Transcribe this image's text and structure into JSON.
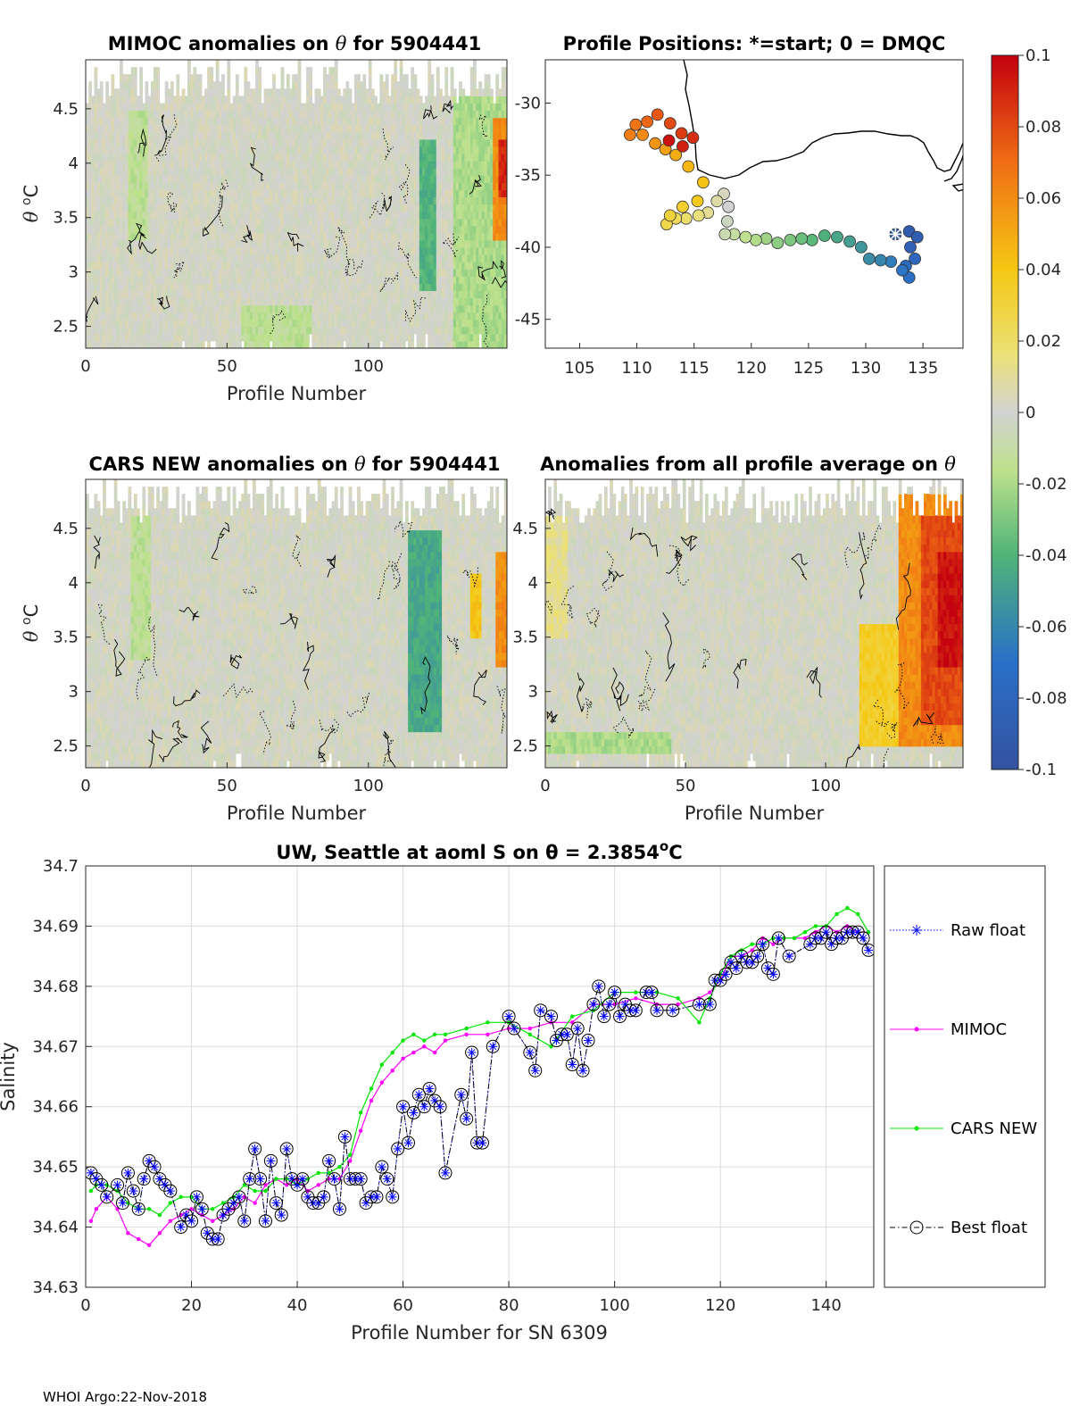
{
  "figure": {
    "footer": "WHOI Argo:22-Nov-2018",
    "colorbar_ticks": [
      "0.1",
      "0.08",
      "0.06",
      "0.04",
      "0.02",
      "0",
      "-0.02",
      "-0.04",
      "-0.06",
      "-0.08",
      "-0.1"
    ],
    "colors": {
      "grid": "#dcdcdc",
      "land": "#000000",
      "mimoc": "#ff00ff",
      "cars": "#00e600",
      "raw": "#0000ff",
      "best": "#000000"
    }
  },
  "panels": {
    "mimoc": {
      "title_a": "MIMOC anomalies on ",
      "theta": "θ",
      "title_b": "  for 5904441",
      "xlabel": "Profile Number",
      "ylabel_theta": "θ",
      "ylabel_unit": "C",
      "ylabel_deg": "o",
      "xticks": [
        "0",
        "50",
        "100"
      ],
      "yticks": [
        "4.5",
        "4",
        "3.5",
        "3",
        "2.5"
      ]
    },
    "positions": {
      "title": "Profile Positions: *=start; 0 = DMQC",
      "xticks": [
        "105",
        "110",
        "115",
        "120",
        "125",
        "130",
        "135"
      ],
      "yticks": [
        "-30",
        "-35",
        "-40",
        "-45"
      ]
    },
    "cars": {
      "title_a": "CARS NEW anomalies on ",
      "theta": "θ",
      "title_b": " for 5904441",
      "xlabel": "Profile Number",
      "ylabel_theta": "θ",
      "ylabel_unit": "C",
      "ylabel_deg": "o",
      "xticks": [
        "0",
        "50",
        "100"
      ],
      "yticks": [
        "4.5",
        "4",
        "3.5",
        "3",
        "2.5"
      ]
    },
    "average": {
      "title_a": "Anomalies from all profile average on ",
      "theta": "θ",
      "xlabel": "Profile Number",
      "xticks": [
        "0",
        "50",
        "100"
      ],
      "yticks": [
        "4.5",
        "4",
        "3.5",
        "3",
        "2.5"
      ]
    }
  },
  "chart_data": [
    {
      "type": "heatmap",
      "id": "mimoc",
      "title": "MIMOC anomalies on θ  for 5904441",
      "xlabel": "Profile Number",
      "ylabel": "θ °C",
      "xlim": [
        0,
        149
      ],
      "ylim": [
        2.3,
        4.95
      ],
      "clim": [
        -0.1,
        0.1
      ],
      "features": [
        {
          "x0": 130,
          "x1": 149,
          "y0": 2.3,
          "y1": 4.6,
          "v": -0.02
        },
        {
          "x0": 144,
          "x1": 149,
          "y0": 3.3,
          "y1": 4.4,
          "v": 0.06
        },
        {
          "x0": 146,
          "x1": 149,
          "y0": 3.7,
          "y1": 4.2,
          "v": 0.09
        },
        {
          "x0": 118,
          "x1": 124,
          "y0": 2.8,
          "y1": 4.2,
          "v": -0.04
        },
        {
          "x0": 15,
          "x1": 22,
          "y0": 3.3,
          "y1": 4.5,
          "v": -0.015
        },
        {
          "x0": 55,
          "x1": 80,
          "y0": 2.3,
          "y1": 2.7,
          "v": -0.015
        }
      ]
    },
    {
      "type": "scatter",
      "id": "positions",
      "title": "Profile Positions: *=start; 0 = DMQC",
      "xlim": [
        102,
        138.5
      ],
      "ylim": [
        -47,
        -27
      ],
      "start": {
        "lon": 132.6,
        "lat": -39.1
      },
      "track": [
        [
          132.6,
          -39.1
        ],
        [
          133.8,
          -38.9
        ],
        [
          134.5,
          -39.3
        ],
        [
          133.9,
          -40.0
        ],
        [
          134.3,
          -40.8
        ],
        [
          133.5,
          -41.3
        ],
        [
          133.8,
          -42.1
        ],
        [
          133.2,
          -41.6
        ],
        [
          132.2,
          -41.0
        ],
        [
          131.3,
          -40.9
        ],
        [
          130.3,
          -40.8
        ],
        [
          129.6,
          -40.0
        ],
        [
          128.6,
          -39.6
        ],
        [
          127.5,
          -39.3
        ],
        [
          126.4,
          -39.2
        ],
        [
          125.3,
          -39.5
        ],
        [
          124.4,
          -39.4
        ],
        [
          123.4,
          -39.5
        ],
        [
          122.3,
          -39.7
        ],
        [
          121.3,
          -39.4
        ],
        [
          120.4,
          -39.5
        ],
        [
          119.5,
          -39.3
        ],
        [
          118.5,
          -39.1
        ],
        [
          117.7,
          -39.1
        ],
        [
          117.9,
          -38.2
        ],
        [
          118.0,
          -37.2
        ],
        [
          117.6,
          -36.3
        ],
        [
          117.0,
          -36.8
        ],
        [
          116.2,
          -37.6
        ],
        [
          115.4,
          -37.8
        ],
        [
          114.3,
          -38.0
        ],
        [
          113.4,
          -38.0
        ],
        [
          112.6,
          -38.4
        ],
        [
          112.9,
          -37.8
        ],
        [
          114.0,
          -37.2
        ],
        [
          115.3,
          -36.8
        ],
        [
          115.8,
          -35.5
        ],
        [
          114.5,
          -34.4
        ],
        [
          113.4,
          -33.6
        ],
        [
          112.5,
          -33.2
        ],
        [
          111.6,
          -32.8
        ],
        [
          110.5,
          -32.2
        ],
        [
          109.4,
          -32.2
        ],
        [
          109.9,
          -31.5
        ],
        [
          110.9,
          -31.3
        ],
        [
          111.8,
          -30.8
        ],
        [
          112.9,
          -31.4
        ],
        [
          113.9,
          -32.1
        ],
        [
          114.9,
          -32.4
        ],
        [
          114.0,
          -33.0
        ],
        [
          112.8,
          -32.6
        ]
      ]
    },
    {
      "type": "heatmap",
      "id": "cars",
      "title": "CARS NEW anomalies on θ for 5904441",
      "xlabel": "Profile Number",
      "ylabel": "θ °C",
      "xlim": [
        0,
        149
      ],
      "ylim": [
        2.3,
        4.95
      ],
      "clim": [
        -0.1,
        0.1
      ],
      "features": [
        {
          "x0": 114,
          "x1": 126,
          "y0": 2.6,
          "y1": 4.5,
          "v": -0.045
        },
        {
          "x0": 136,
          "x1": 140,
          "y0": 3.5,
          "y1": 4.1,
          "v": 0.04
        },
        {
          "x0": 145,
          "x1": 149,
          "y0": 3.2,
          "y1": 4.3,
          "v": 0.06
        },
        {
          "x0": 16,
          "x1": 23,
          "y0": 3.3,
          "y1": 4.6,
          "v": -0.015
        }
      ]
    },
    {
      "type": "heatmap",
      "id": "average",
      "title": "Anomalies from all profile average on θ",
      "xlabel": "Profile Number",
      "xlim": [
        0,
        149
      ],
      "ylim": [
        2.3,
        4.95
      ],
      "clim": [
        -0.1,
        0.1
      ],
      "features": [
        {
          "x0": 0,
          "x1": 45,
          "y0": 2.4,
          "y1": 2.65,
          "v": -0.02
        },
        {
          "x0": 0,
          "x1": 8,
          "y0": 3.5,
          "y1": 4.6,
          "v": 0.012
        },
        {
          "x0": 112,
          "x1": 149,
          "y0": 2.5,
          "y1": 3.6,
          "v": 0.035
        },
        {
          "x0": 126,
          "x1": 149,
          "y0": 2.5,
          "y1": 4.8,
          "v": 0.06
        },
        {
          "x0": 134,
          "x1": 149,
          "y0": 2.7,
          "y1": 4.6,
          "v": 0.08
        },
        {
          "x0": 140,
          "x1": 149,
          "y0": 3.2,
          "y1": 4.3,
          "v": 0.095
        }
      ]
    },
    {
      "type": "line",
      "id": "salinity",
      "title": "UW, Seattle at aoml S on θ = 2.3854",
      "title_deg": "o",
      "title_unit": "C",
      "xlabel": "Profile Number for SN 6309",
      "ylabel": "Salinity",
      "xlim": [
        0,
        149
      ],
      "ylim": [
        34.63,
        34.7
      ],
      "xticks": [
        "0",
        "20",
        "40",
        "60",
        "80",
        "100",
        "120",
        "140"
      ],
      "yticks": [
        "34.7",
        "34.69",
        "34.68",
        "34.67",
        "34.66",
        "34.65",
        "34.64",
        "34.63"
      ],
      "legend": [
        "Raw float",
        "MIMOC",
        "CARS NEW",
        "Best float"
      ],
      "series": [
        {
          "name": "MIMOC",
          "x": [
            1,
            2,
            4,
            6,
            8,
            10,
            12,
            14,
            16,
            18,
            20,
            22,
            24,
            26,
            28,
            30,
            32,
            34,
            36,
            38,
            40,
            42,
            44,
            46,
            48,
            50,
            52,
            54,
            56,
            58,
            60,
            62,
            64,
            66,
            68,
            72,
            76,
            80,
            84,
            88,
            92,
            96,
            100,
            104,
            108,
            112,
            116,
            118,
            120,
            122,
            124,
            126,
            128,
            130,
            132,
            134,
            136,
            138,
            140,
            142,
            144,
            146,
            148
          ],
          "values": [
            34.641,
            34.643,
            34.645,
            34.643,
            34.639,
            34.638,
            34.637,
            34.639,
            34.641,
            34.642,
            34.643,
            34.642,
            34.641,
            34.642,
            34.643,
            34.645,
            34.644,
            34.647,
            34.648,
            34.647,
            34.648,
            34.646,
            34.647,
            34.648,
            34.648,
            34.651,
            34.656,
            34.661,
            34.664,
            34.666,
            34.668,
            34.669,
            34.67,
            34.669,
            34.671,
            34.672,
            34.672,
            34.673,
            34.673,
            34.674,
            34.674,
            34.677,
            34.677,
            34.678,
            34.677,
            34.677,
            34.678,
            34.679,
            34.681,
            34.685,
            34.685,
            34.686,
            34.688,
            34.687,
            34.688,
            34.688,
            34.688,
            34.689,
            34.69,
            34.689,
            34.69,
            34.689,
            34.689
          ]
        },
        {
          "name": "CARS NEW",
          "x": [
            1,
            2,
            4,
            6,
            8,
            10,
            12,
            14,
            16,
            18,
            20,
            22,
            24,
            26,
            28,
            30,
            32,
            34,
            36,
            38,
            40,
            42,
            44,
            46,
            48,
            50,
            52,
            54,
            56,
            58,
            60,
            62,
            64,
            66,
            68,
            72,
            76,
            80,
            84,
            88,
            92,
            96,
            100,
            104,
            108,
            112,
            116,
            118,
            120,
            122,
            124,
            126,
            128,
            130,
            132,
            134,
            136,
            138,
            140,
            142,
            144,
            146,
            148
          ],
          "values": [
            34.646,
            34.647,
            34.647,
            34.646,
            34.644,
            34.643,
            34.643,
            34.642,
            34.644,
            34.645,
            34.645,
            34.643,
            34.643,
            34.644,
            34.645,
            34.647,
            34.646,
            34.646,
            34.648,
            34.648,
            34.647,
            34.648,
            34.649,
            34.649,
            34.65,
            34.652,
            34.659,
            34.663,
            34.667,
            34.669,
            34.671,
            34.672,
            34.671,
            34.672,
            34.672,
            34.673,
            34.674,
            34.674,
            34.672,
            34.67,
            34.675,
            34.676,
            34.679,
            34.679,
            34.679,
            34.678,
            34.674,
            34.678,
            34.682,
            34.685,
            34.686,
            34.687,
            34.687,
            34.688,
            34.688,
            34.688,
            34.689,
            34.69,
            34.69,
            34.692,
            34.693,
            34.692,
            34.689
          ]
        },
        {
          "name": "Best float",
          "x": [
            1,
            2,
            3,
            4,
            6,
            7,
            8,
            9,
            10,
            11,
            12,
            13,
            14,
            15,
            16,
            18,
            19,
            20,
            21,
            22,
            23,
            24,
            25,
            26,
            27,
            28,
            29,
            30,
            31,
            32,
            33,
            34,
            35,
            36,
            37,
            38,
            39,
            40,
            41,
            42,
            43,
            44,
            45,
            46,
            47,
            48,
            49,
            50,
            51,
            52,
            53,
            54,
            55,
            56,
            57,
            58,
            59,
            60,
            61,
            62,
            63,
            64,
            65,
            66,
            67,
            68,
            71,
            72,
            73,
            74,
            75,
            77,
            80,
            81,
            84,
            85,
            86,
            88,
            89,
            90,
            91,
            92,
            93,
            94,
            95,
            96,
            97,
            98,
            99,
            100,
            101,
            102,
            103,
            104,
            106,
            107,
            108,
            111,
            116,
            118,
            119,
            120,
            121,
            122,
            123,
            124,
            125,
            126,
            127,
            128,
            129,
            130,
            131,
            133,
            137,
            138,
            139,
            140,
            141,
            142,
            143,
            144,
            145,
            146,
            147,
            148
          ],
          "values": [
            34.649,
            34.648,
            34.647,
            34.645,
            34.647,
            34.644,
            34.649,
            34.646,
            34.643,
            34.648,
            34.651,
            34.65,
            34.648,
            34.647,
            34.646,
            34.64,
            34.642,
            34.641,
            34.645,
            34.643,
            34.639,
            34.638,
            34.638,
            34.642,
            34.643,
            34.644,
            34.645,
            34.641,
            34.648,
            34.653,
            34.648,
            34.641,
            34.651,
            34.644,
            34.642,
            34.653,
            34.648,
            34.647,
            34.648,
            34.645,
            34.644,
            34.644,
            34.645,
            34.651,
            34.648,
            34.643,
            34.655,
            34.648,
            34.648,
            34.648,
            34.644,
            34.645,
            34.645,
            34.65,
            34.648,
            34.645,
            34.653,
            34.66,
            34.654,
            34.659,
            34.662,
            34.66,
            34.663,
            34.661,
            34.66,
            34.649,
            34.662,
            34.658,
            34.669,
            34.654,
            34.654,
            34.67,
            34.675,
            34.673,
            34.669,
            34.666,
            34.676,
            34.675,
            34.671,
            34.672,
            34.672,
            34.667,
            34.673,
            34.666,
            34.671,
            34.677,
            34.68,
            34.675,
            34.677,
            34.679,
            34.675,
            34.677,
            34.676,
            34.676,
            34.679,
            34.679,
            34.676,
            34.676,
            34.677,
            34.677,
            34.681,
            34.681,
            34.682,
            34.684,
            34.683,
            34.685,
            34.684,
            34.684,
            34.685,
            34.687,
            34.683,
            34.682,
            34.688,
            34.685,
            34.687,
            34.688,
            34.688,
            34.689,
            34.687,
            34.688,
            34.688,
            34.689,
            34.689,
            34.689,
            34.688,
            34.686
          ]
        }
      ]
    }
  ]
}
